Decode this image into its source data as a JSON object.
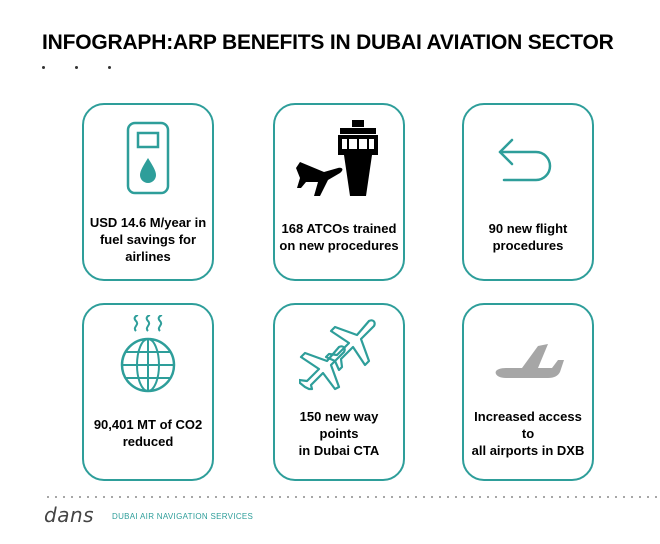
{
  "header": {
    "title": "INFOGRAPH:ARP BENEFITS IN DUBAI AVIATION SECTOR"
  },
  "cards": [
    {
      "label": "USD 14.6 M/year in\nfuel savings for\nairlines",
      "icon": "fuel-pump-icon"
    },
    {
      "label": "168 ATCOs trained\non new procedures",
      "icon": "control-tower-icon"
    },
    {
      "label": "90 new flight\nprocedures",
      "icon": "return-arrow-icon"
    },
    {
      "label": "90,401 MT of CO2\nreduced",
      "icon": "globe-emissions-icon"
    },
    {
      "label": "150 new way points\nin Dubai CTA",
      "icon": "two-airplanes-icon"
    },
    {
      "label": "Increased access to\nall airports in DXB",
      "icon": "airplane-icon"
    }
  ],
  "footer": {
    "logo": "dans",
    "org_name": "DUBAI AIR NAVIGATION SERVICES"
  },
  "colors": {
    "accent": "#2e9e9a",
    "airplane_gray": "#a6a6a6"
  }
}
